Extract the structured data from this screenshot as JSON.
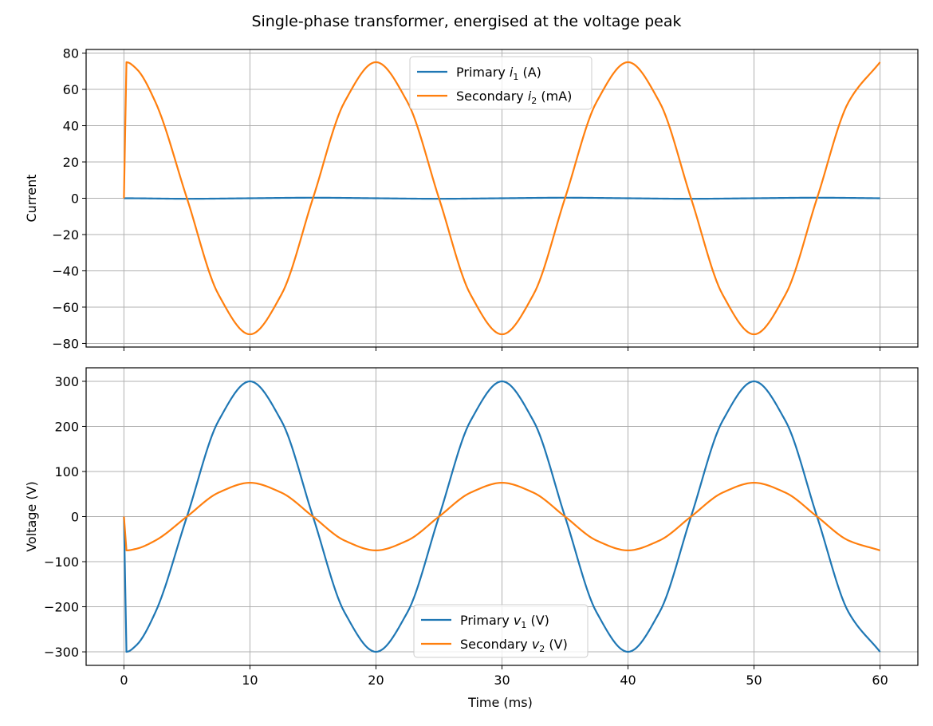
{
  "figure": {
    "title": "Single-phase transformer, energised at the voltage peak"
  },
  "chart_data": [
    {
      "type": "line",
      "xlabel": "",
      "ylabel": "Current",
      "xlim": [
        -3,
        63
      ],
      "ylim": [
        -82,
        82
      ],
      "xticks": [
        0,
        10,
        20,
        30,
        40,
        50,
        60
      ],
      "yticks": [
        -80,
        -60,
        -40,
        -20,
        0,
        20,
        40,
        60,
        80
      ],
      "grid": true,
      "legend": "upper-center",
      "series": [
        {
          "name": "Primary",
          "symbol": "i",
          "subscript": "1",
          "unit": "(A)",
          "color": "#1f77b4",
          "x": [
            0,
            0.2,
            5,
            10,
            15,
            20,
            25,
            30,
            35,
            40,
            45,
            50,
            55,
            60
          ],
          "values": [
            0,
            0,
            -0.3,
            0,
            0.3,
            0,
            -0.3,
            0,
            0.3,
            0,
            -0.3,
            0,
            0.3,
            0
          ]
        },
        {
          "name": "Secondary",
          "symbol": "i",
          "subscript": "2",
          "unit": "(mA)",
          "color": "#ff7f0e",
          "x": [
            0,
            0.2,
            1,
            2.5,
            5,
            7.5,
            10,
            12.5,
            15,
            17.5,
            20,
            22.5,
            25,
            27.5,
            30,
            32.5,
            35,
            37.5,
            40,
            42.5,
            45,
            47.5,
            50,
            52.5,
            55,
            57.5,
            60
          ],
          "values": [
            0,
            75,
            71.3,
            53,
            0,
            -53,
            -75,
            -53,
            0,
            53,
            75,
            53,
            0,
            -53,
            -75,
            -53,
            0,
            53,
            75,
            53,
            0,
            -53,
            -75,
            -53,
            0,
            53,
            75
          ]
        }
      ]
    },
    {
      "type": "line",
      "xlabel": "Time (ms)",
      "ylabel": "Voltage (V)",
      "xlim": [
        -3,
        63
      ],
      "ylim": [
        -330,
        330
      ],
      "xticks": [
        0,
        10,
        20,
        30,
        40,
        50,
        60
      ],
      "yticks": [
        -300,
        -200,
        -100,
        0,
        100,
        200,
        300
      ],
      "grid": true,
      "legend": "lower-center",
      "series": [
        {
          "name": "Primary",
          "symbol": "v",
          "subscript": "1",
          "unit": "(V)",
          "color": "#1f77b4",
          "x": [
            0,
            0.2,
            1,
            2.5,
            5,
            7.5,
            10,
            12.5,
            15,
            17.5,
            20,
            22.5,
            25,
            27.5,
            30,
            32.5,
            35,
            37.5,
            40,
            42.5,
            45,
            47.5,
            50,
            52.5,
            55,
            57.5,
            60
          ],
          "values": [
            0,
            -300,
            -285,
            -212,
            0,
            212,
            300,
            212,
            0,
            -212,
            -300,
            -212,
            0,
            212,
            300,
            212,
            0,
            -212,
            -300,
            -212,
            0,
            212,
            300,
            212,
            0,
            -212,
            -300
          ]
        },
        {
          "name": "Secondary",
          "symbol": "v",
          "subscript": "2",
          "unit": "(V)",
          "color": "#ff7f0e",
          "x": [
            0,
            0.2,
            1,
            2.5,
            5,
            7.5,
            10,
            12.5,
            15,
            17.5,
            20,
            22.5,
            25,
            27.5,
            30,
            32.5,
            35,
            37.5,
            40,
            42.5,
            45,
            47.5,
            50,
            52.5,
            55,
            57.5,
            60
          ],
          "values": [
            0,
            -75,
            -71.3,
            -53,
            0,
            53,
            75,
            53,
            0,
            -53,
            -75,
            -53,
            0,
            53,
            75,
            53,
            0,
            -53,
            -75,
            -53,
            0,
            53,
            75,
            53,
            0,
            -53,
            -75
          ]
        }
      ]
    }
  ]
}
